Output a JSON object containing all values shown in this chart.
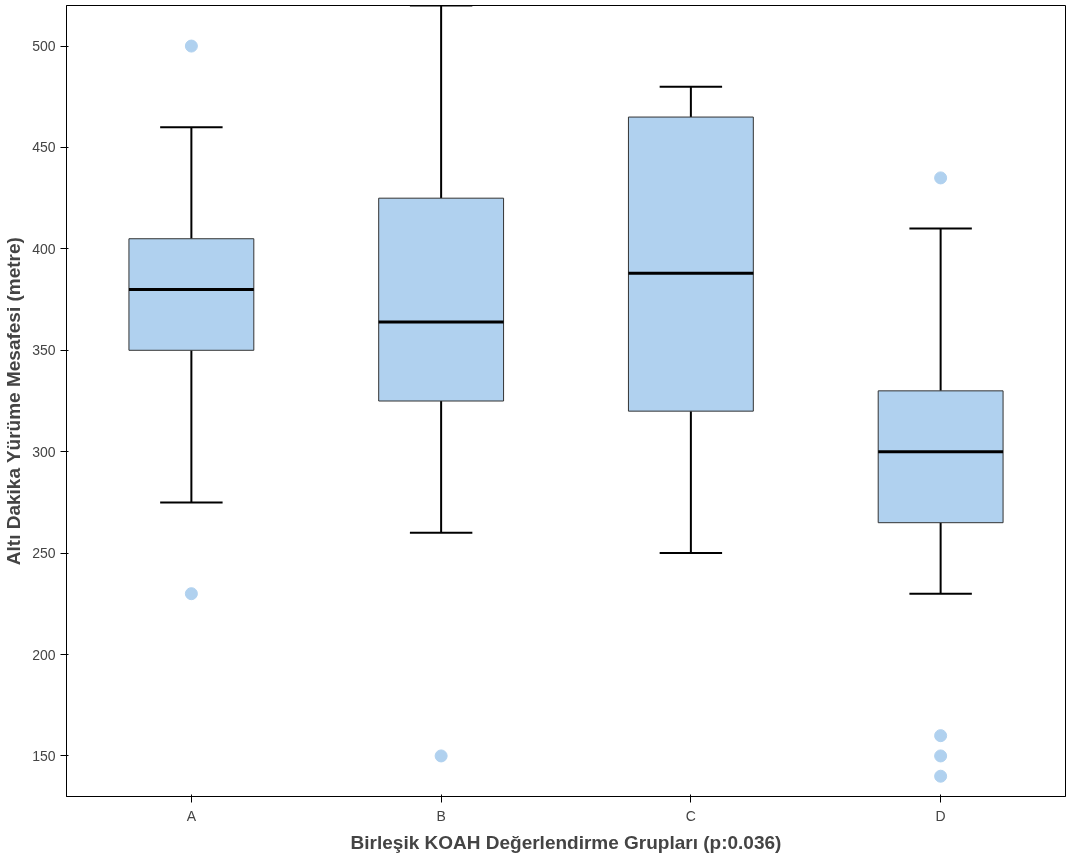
{
  "chart_data": {
    "type": "box",
    "xlabel": "Birleşik KOAH Değerlendirme Grupları (p:0.036)",
    "ylabel": "Altı Dakika Yürüme Mesafesi (metre)",
    "categories": [
      "A",
      "B",
      "C",
      "D"
    ],
    "color": "#b0d1ef",
    "ylim": [
      130,
      520
    ],
    "yticks": [
      150,
      200,
      250,
      300,
      350,
      400,
      450,
      500
    ],
    "grid": false,
    "boxes": [
      {
        "low": 275,
        "q1": 350,
        "median": 380,
        "q3": 405,
        "high": 460,
        "outliers": [
          500,
          230
        ]
      },
      {
        "low": 260,
        "q1": 325,
        "median": 364,
        "q3": 425,
        "high": 520,
        "outliers": [
          150
        ]
      },
      {
        "low": 250,
        "q1": 320,
        "median": 388,
        "q3": 465,
        "high": 480
      },
      {
        "low": 230,
        "q1": 265,
        "median": 300,
        "q3": 330,
        "high": 410,
        "outliers": [
          435,
          160,
          150,
          140
        ]
      }
    ]
  }
}
